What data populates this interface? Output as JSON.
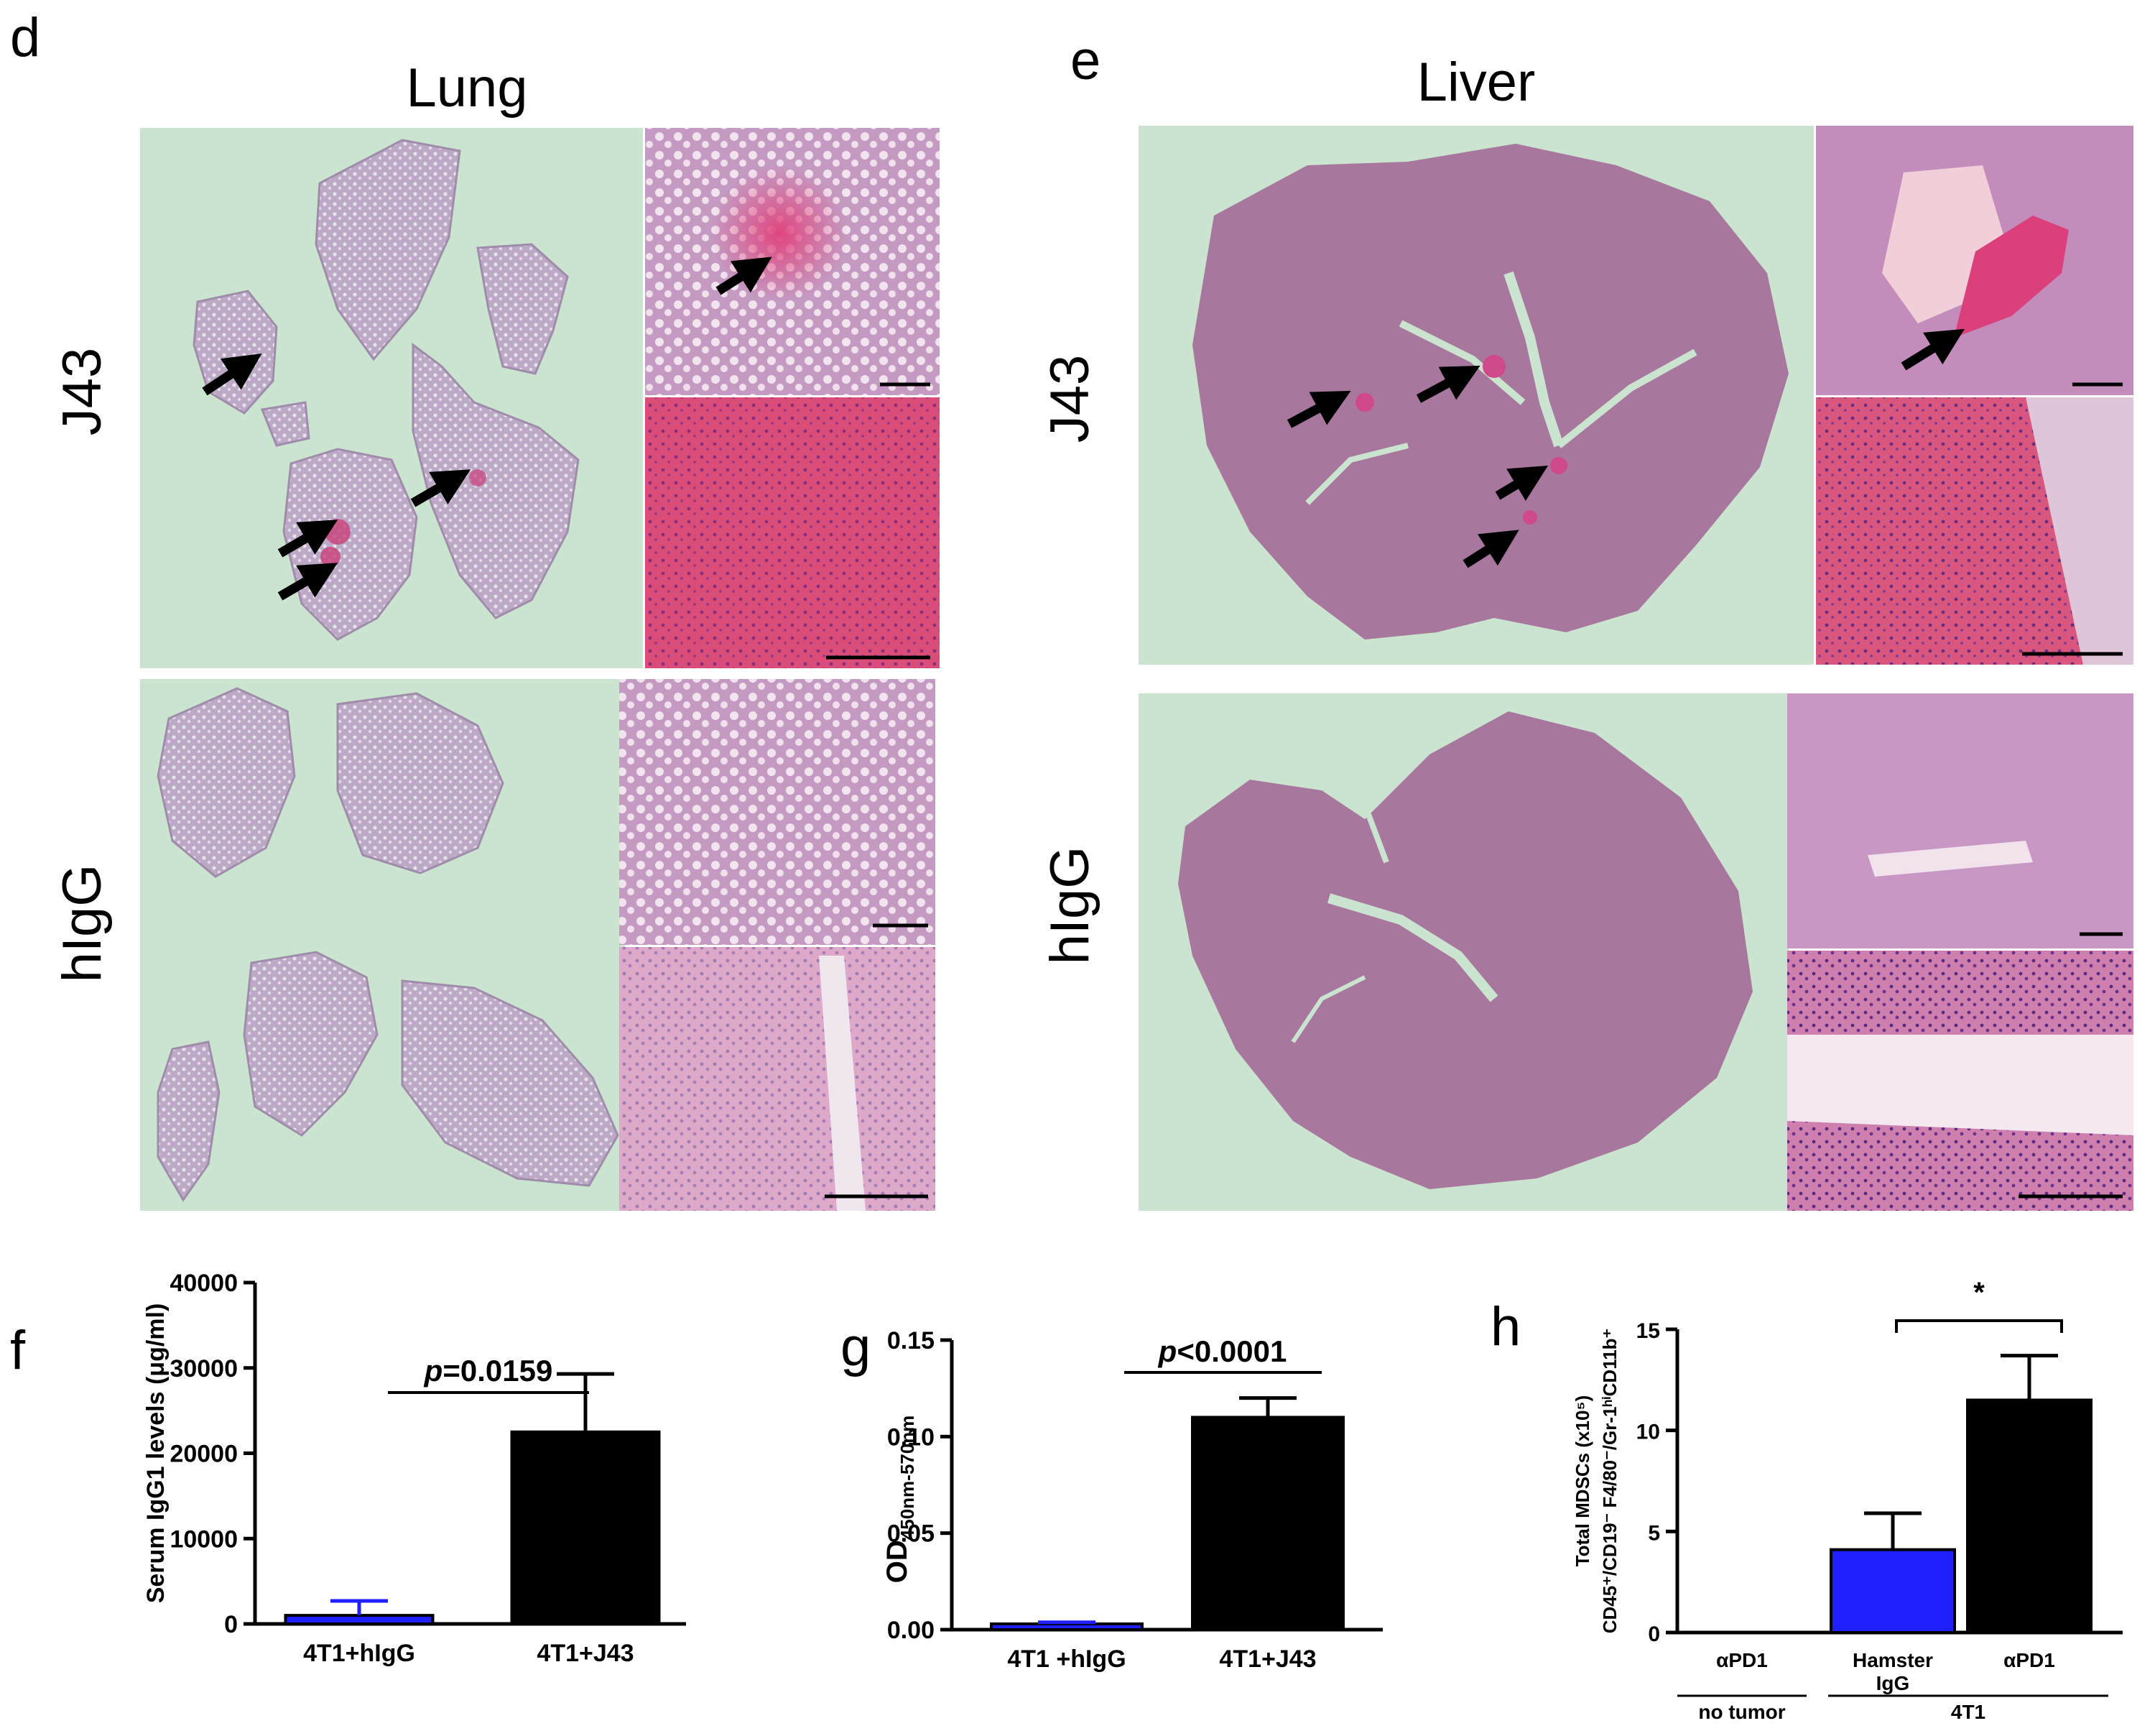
{
  "panel_labels": {
    "d": "d",
    "e": "e",
    "f": "f",
    "g": "g",
    "h": "h"
  },
  "histology": {
    "lung_title": "Lung",
    "liver_title": "Liver",
    "row_j43": "J43",
    "row_higg": "hIgG"
  },
  "colors": {
    "tissue_purple": "#a7779e",
    "lung_light": "#b8a6c1",
    "stain_pink": "#d04a8a",
    "background_green": "#cbe4cf",
    "bar_blue": "#1f1fff",
    "bar_black": "#000000"
  },
  "icons": [
    "arrow-icon",
    "scale-bar-icon"
  ],
  "chart_data": [
    {
      "panel": "f",
      "type": "bar",
      "ylabel": "Serum IgG1 levels (μg/ml)",
      "ylim": [
        0,
        40000
      ],
      "yticks": [
        "0",
        "10000",
        "20000",
        "30000",
        "40000"
      ],
      "categories": [
        "4T1+hIgG",
        "4T1+J43"
      ],
      "values": [
        1000,
        22500
      ],
      "errors": [
        1700,
        6800
      ],
      "bar_colors": [
        "#1f1fff",
        "#000000"
      ],
      "annotation": {
        "prefix": "p",
        "text": "=0.0159"
      }
    },
    {
      "panel": "g",
      "type": "bar",
      "ylabel_main": "OD",
      "ylabel_sub": "450nm-570nm",
      "ylim": [
        0,
        0.15
      ],
      "yticks": [
        "0.00",
        "0.05",
        "0.10",
        "0.15"
      ],
      "categories": [
        "4T1 +hIgG",
        "4T1+J43"
      ],
      "values": [
        0.003,
        0.11
      ],
      "errors": [
        0.0008,
        0.01
      ],
      "bar_colors": [
        "#1f1fff",
        "#000000"
      ],
      "annotation": {
        "prefix": "p",
        "text": "<0.0001"
      }
    },
    {
      "panel": "h",
      "type": "bar",
      "ylabel_line1": "Total MDSCs (x10⁵)",
      "ylabel_line2": "CD45⁺/CD19⁻ F4/80⁻/Gr-1ʰⁱCD11b⁺",
      "ylim": [
        0,
        15
      ],
      "yticks": [
        "0",
        "5",
        "10",
        "15"
      ],
      "categories": [
        "αPD1",
        "Hamster IgG",
        "αPD1"
      ],
      "values": [
        0,
        4.1,
        11.5
      ],
      "errors": [
        0,
        1.8,
        2.2
      ],
      "bar_colors": [
        "#1f1fff",
        "#1f1fff",
        "#000000"
      ],
      "groups": [
        "no tumor",
        "4T1"
      ],
      "annotation": {
        "text": "*"
      }
    }
  ]
}
